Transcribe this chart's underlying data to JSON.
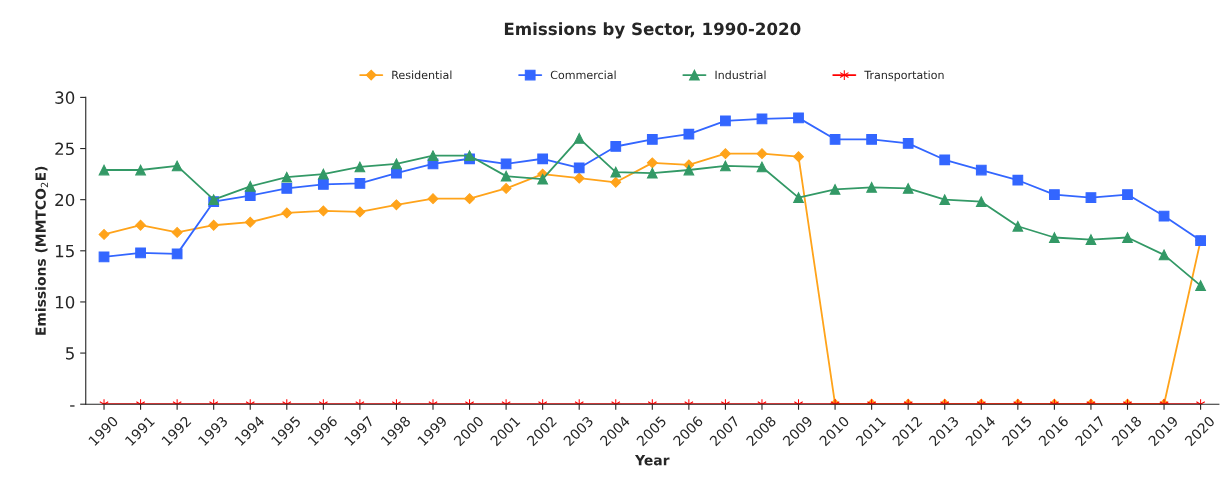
{
  "chart_data": {
    "type": "line",
    "title": "Emissions by Sector, 1990-2020",
    "xlabel": "Year",
    "ylabel": "Emissions (MMTCO$_{2}$E)",
    "categories": [
      "1990",
      "1991",
      "1992",
      "1993",
      "1994",
      "1995",
      "1996",
      "1997",
      "1998",
      "1999",
      "2000",
      "2001",
      "2002",
      "2003",
      "2004",
      "2005",
      "2006",
      "2007",
      "2008",
      "2009",
      "2010",
      "2011",
      "2012",
      "2013",
      "2014",
      "2015",
      "2016",
      "2017",
      "2018",
      "2019",
      "2020"
    ],
    "series": [
      {
        "name": "Residential",
        "color": "#ffa31a",
        "marker": "diamond",
        "values": [
          16.6,
          17.5,
          16.8,
          17.5,
          17.8,
          18.7,
          18.9,
          18.8,
          19.5,
          20.1,
          20.1,
          21.1,
          22.5,
          22.1,
          21.7,
          23.6,
          23.4,
          24.5,
          24.5,
          24.2,
          0,
          0,
          0,
          0,
          0,
          0,
          0,
          0,
          0,
          0,
          16.0
        ]
      },
      {
        "name": "Commercial",
        "color": "#3366ff",
        "marker": "square",
        "values": [
          14.4,
          14.8,
          14.7,
          19.8,
          20.4,
          21.1,
          21.5,
          21.6,
          22.6,
          23.5,
          24.0,
          23.5,
          24.0,
          23.1,
          25.2,
          25.9,
          26.4,
          27.7,
          27.9,
          28.0,
          25.9,
          25.9,
          25.5,
          23.9,
          22.9,
          21.9,
          20.5,
          20.2,
          20.5,
          18.4,
          16.0
        ]
      },
      {
        "name": "Industrial",
        "color": "#339966",
        "marker": "triangle",
        "values": [
          22.9,
          22.9,
          23.3,
          20.0,
          21.3,
          22.2,
          22.5,
          23.2,
          23.5,
          24.3,
          24.3,
          22.3,
          22.0,
          26.0,
          22.7,
          22.6,
          22.9,
          23.3,
          23.2,
          20.2,
          21.0,
          21.2,
          21.1,
          20.0,
          19.8,
          17.4,
          16.3,
          16.1,
          16.3,
          14.6,
          11.6
        ]
      },
      {
        "name": "Transportation",
        "color": "#ff0000",
        "marker": "cross",
        "values": [
          0,
          0,
          0,
          0,
          0,
          0,
          0,
          0,
          0,
          0,
          0,
          0,
          0,
          0,
          0,
          0,
          0,
          0,
          0,
          0,
          0,
          0,
          0,
          0,
          0,
          0,
          0,
          0,
          0,
          0,
          0
        ]
      }
    ],
    "ylim": [
      0,
      30
    ],
    "yticks": [
      {
        "value": 0,
        "label": "-"
      },
      5,
      10,
      15,
      20,
      25,
      30
    ],
    "grid": false,
    "legend": "top",
    "line_style": "solid"
  }
}
